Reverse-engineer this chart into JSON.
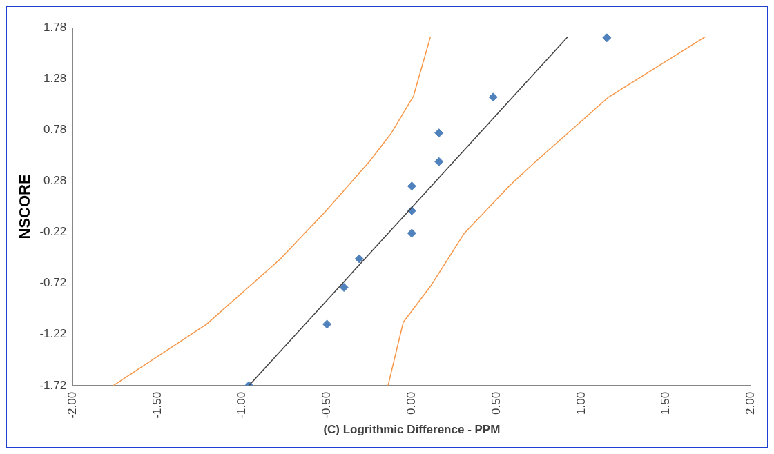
{
  "chart_data": {
    "type": "scatter",
    "xlabel": "(C) Logrithmic Difference - PPM",
    "ylabel": "NSCORE",
    "xlim": [
      -2,
      2
    ],
    "xticks": [
      {
        "value": -2,
        "label": "-2.00"
      },
      {
        "value": -1.5,
        "label": "-1.50"
      },
      {
        "value": -1,
        "label": "-1.00"
      },
      {
        "value": -0.5,
        "label": "-0.50"
      },
      {
        "value": 0,
        "label": "0.00"
      },
      {
        "value": 0.5,
        "label": "0.50"
      },
      {
        "value": 1,
        "label": "1.00"
      },
      {
        "value": 1.5,
        "label": "1.50"
      },
      {
        "value": 2,
        "label": "2.00"
      }
    ],
    "ylim": [
      -1.72,
      1.78
    ],
    "yticks": [
      -1.72,
      -1.22,
      -0.72,
      -0.22,
      0.28,
      0.78,
      1.28,
      1.78
    ],
    "grid": false,
    "legend": false,
    "series": [
      {
        "type": "line",
        "color": "#f79646",
        "marker": "none",
        "x": [
          -1.76,
          -1.21,
          -0.78,
          -0.51,
          -0.25,
          -0.12,
          0.01,
          0.11
        ],
        "values": [
          -1.72,
          -1.12,
          -0.49,
          -0.02,
          0.47,
          0.75,
          1.11,
          1.69
        ]
      },
      {
        "type": "line",
        "color": "#f79646",
        "marker": "none",
        "x": [
          -0.14,
          -0.05,
          0.11,
          0.31,
          0.58,
          0.73,
          1.16,
          1.73
        ],
        "values": [
          -1.72,
          -1.1,
          -0.75,
          -0.23,
          0.24,
          0.47,
          1.1,
          1.69
        ]
      },
      {
        "type": "line",
        "color": "#404040",
        "marker": "none",
        "x": [
          -0.96,
          0.92
        ],
        "values": [
          -1.72,
          1.69
        ]
      },
      {
        "type": "scatter",
        "color": "#4f81bd",
        "marker": "diamond",
        "x": [
          -0.96,
          -0.5,
          -0.4,
          -0.31,
          0,
          0,
          0,
          0.16,
          0.16,
          0.48,
          1.15
        ],
        "values": [
          -1.72,
          -1.12,
          -0.76,
          -0.48,
          -0.23,
          -0.01,
          0.23,
          0.47,
          0.75,
          1.1,
          1.68
        ]
      }
    ]
  }
}
